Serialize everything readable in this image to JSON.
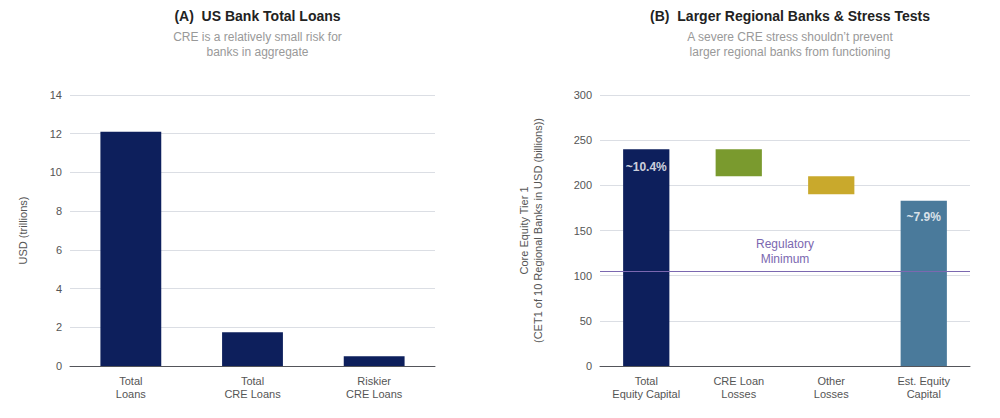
{
  "chart_data": [
    {
      "type": "bar",
      "title": "(A)  US Bank Total Loans",
      "subtitle": "CRE is a relatively small risk for\nbanks in aggregate",
      "categories": [
        "Total\nLoans",
        "Total\nCRE Loans",
        "Riskier\nCRE Loans"
      ],
      "values": [
        12.1,
        1.75,
        0.5
      ],
      "color": "#0d1f5c",
      "ylabel": "USD (trillions)",
      "ylim": [
        0,
        14
      ],
      "yticks": [
        0,
        2,
        4,
        6,
        8,
        10,
        12,
        14
      ],
      "grid": true
    },
    {
      "type": "bar",
      "title": "(B)  Larger Regional Banks & Stress Tests",
      "subtitle": "A severe CRE stress shouldn’t prevent\nlarger regional banks from functioning",
      "categories": [
        "Total\nEquity Capital",
        "CRE Loan\nLosses",
        "Other\nLosses",
        "Est. Equity\nCapital"
      ],
      "bottoms": [
        0,
        210,
        190,
        0
      ],
      "values": [
        240,
        240,
        210,
        183
      ],
      "colors": [
        "#0d1f5c",
        "#7a9a2e",
        "#c9a92c",
        "#4a7a9b"
      ],
      "ylabel": "Core Equity Tier 1\n(CET1 of 10 Regional Banks in USD (billions))",
      "ylim": [
        0,
        300
      ],
      "yticks": [
        0,
        50,
        100,
        150,
        200,
        250,
        300
      ],
      "grid": true,
      "reference_line": {
        "value": 105,
        "label": "Regulatory\nMinimum",
        "color": "#7b68b0"
      },
      "annotations": [
        {
          "text": "~10.4%",
          "x": "Total\nEquity Capital",
          "y": 220
        },
        {
          "text": "~7.9%",
          "x": "Est. Equity\nCapital",
          "y": 165
        }
      ]
    }
  ]
}
